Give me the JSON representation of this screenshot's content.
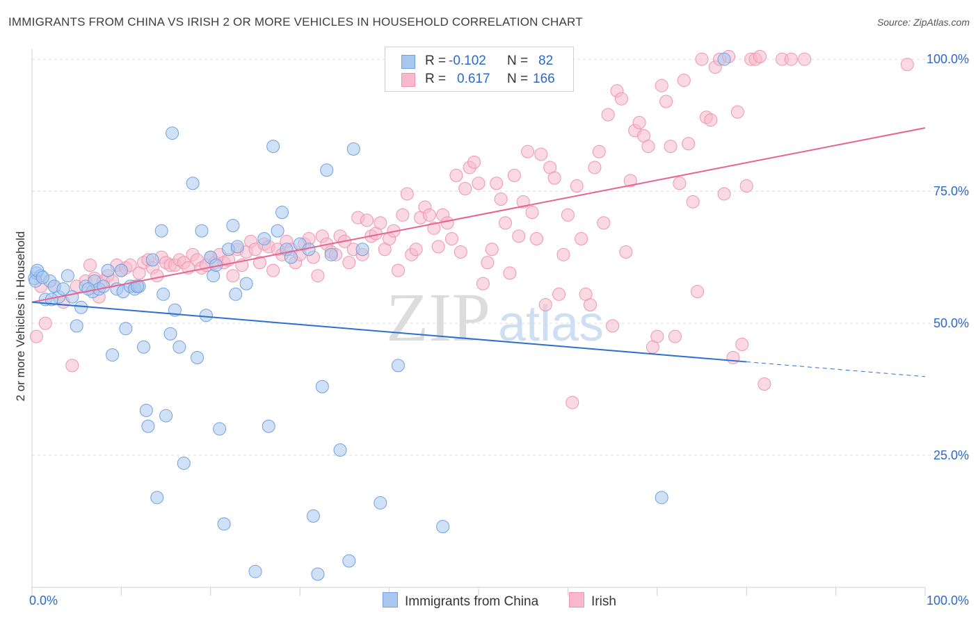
{
  "title": "IMMIGRANTS FROM CHINA VS IRISH 2 OR MORE VEHICLES IN HOUSEHOLD CORRELATION CHART",
  "source": "Source: ZipAtlas.com",
  "watermark": {
    "zip": "ZIP",
    "atlas": "atlas"
  },
  "colors": {
    "china_fill": "#a9c8f0",
    "china_stroke": "#6f9fe0",
    "china_line": "#2d6fd0",
    "irish_fill": "#f7b9cb",
    "irish_stroke": "#ee94b0",
    "irish_line": "#e8628d",
    "value_text": "#2d68c4"
  },
  "legend": [
    {
      "r_label": "R =",
      "r_value": "-0.102",
      "n_label": "N =",
      "n_value": "82"
    },
    {
      "r_label": "R =",
      "r_value": "0.617",
      "n_label": "N =",
      "n_value": "166"
    }
  ],
  "bottom_legend": [
    "Immigrants from China",
    "Irish"
  ],
  "chart_data": {
    "type": "scatter",
    "title": "IMMIGRANTS FROM CHINA VS IRISH 2 OR MORE VEHICLES IN HOUSEHOLD CORRELATION CHART",
    "xlabel": "",
    "ylabel": "2 or more Vehicles in Household",
    "xlim": [
      0,
      100
    ],
    "ylim": [
      0,
      102
    ],
    "x_tick_labels": [
      "0.0%",
      "100.0%"
    ],
    "y_ticks": [
      25,
      50,
      75,
      100
    ],
    "y_tick_labels": [
      "25.0%",
      "50.0%",
      "75.0%",
      "100.0%"
    ],
    "grid": true,
    "series": [
      {
        "name": "Immigrants from China",
        "r": -0.102,
        "n": 82,
        "trend": {
          "x0": 0,
          "y0": 54.0,
          "x1": 80,
          "y1": 42.7,
          "dashed_to_x": 100,
          "dashed_to_y": 39.9
        },
        "points": [
          [
            0.3,
            58.5
          ],
          [
            0.5,
            59.5
          ],
          [
            1,
            59
          ],
          [
            1.5,
            54.5
          ],
          [
            2,
            58
          ],
          [
            2.5,
            57
          ],
          [
            3,
            55
          ],
          [
            4,
            59
          ],
          [
            4.5,
            55
          ],
          [
            5,
            49.5
          ],
          [
            5.5,
            53
          ],
          [
            6,
            57
          ],
          [
            6.8,
            56
          ],
          [
            7,
            58
          ],
          [
            7.5,
            56.5
          ],
          [
            8,
            57
          ],
          [
            8.5,
            60
          ],
          [
            9,
            44
          ],
          [
            9.5,
            56.5
          ],
          [
            10,
            60
          ],
          [
            10.2,
            56
          ],
          [
            10.5,
            49
          ],
          [
            11,
            57
          ],
          [
            11.5,
            56.5
          ],
          [
            12,
            57
          ],
          [
            12.5,
            45.5
          ],
          [
            12.8,
            33.5
          ],
          [
            13,
            30.5
          ],
          [
            13.5,
            62
          ],
          [
            14,
            17
          ],
          [
            14.5,
            67.5
          ],
          [
            14.7,
            55.5
          ],
          [
            15,
            32.5
          ],
          [
            15.5,
            48
          ],
          [
            15.7,
            86
          ],
          [
            16,
            52.5
          ],
          [
            16.5,
            45.5
          ],
          [
            17,
            23.5
          ],
          [
            18,
            76.5
          ],
          [
            18.5,
            43.5
          ],
          [
            19,
            67.5
          ],
          [
            19.5,
            51.5
          ],
          [
            20,
            62.5
          ],
          [
            20.3,
            59
          ],
          [
            20.6,
            61
          ],
          [
            21,
            30
          ],
          [
            21.5,
            12
          ],
          [
            22,
            64
          ],
          [
            22.5,
            68.5
          ],
          [
            22.8,
            55.5
          ],
          [
            23,
            64.5
          ],
          [
            24,
            57.5
          ],
          [
            25,
            3
          ],
          [
            26,
            66
          ],
          [
            26.5,
            30.5
          ],
          [
            27,
            83.5
          ],
          [
            27.5,
            67.5
          ],
          [
            28,
            71
          ],
          [
            28.5,
            64
          ],
          [
            29,
            62.5
          ],
          [
            30,
            65
          ],
          [
            31,
            64
          ],
          [
            31.5,
            13.5
          ],
          [
            32,
            2.5
          ],
          [
            32.5,
            38
          ],
          [
            33,
            79
          ],
          [
            33.5,
            63
          ],
          [
            34.5,
            26
          ],
          [
            35.5,
            5
          ],
          [
            36,
            83
          ],
          [
            37,
            64
          ],
          [
            39,
            16
          ],
          [
            41,
            42
          ],
          [
            46,
            11.5
          ],
          [
            70.5,
            17
          ],
          [
            77.5,
            100
          ],
          [
            0.4,
            58
          ],
          [
            0.6,
            60
          ],
          [
            1.2,
            58.7
          ],
          [
            2.2,
            54.5
          ],
          [
            3.5,
            56.5
          ],
          [
            6.3,
            56.5
          ],
          [
            11.8,
            57
          ]
        ]
      },
      {
        "name": "Irish",
        "r": 0.617,
        "n": 166,
        "trend": {
          "x0": 0,
          "y0": 54.0,
          "x1": 100,
          "y1": 87.0
        },
        "points": [
          [
            0.5,
            47.5
          ],
          [
            1,
            57
          ],
          [
            1.5,
            50
          ],
          [
            2.5,
            57
          ],
          [
            3.5,
            54
          ],
          [
            4.5,
            42
          ],
          [
            5,
            57
          ],
          [
            6,
            58
          ],
          [
            6.5,
            61
          ],
          [
            7,
            58.5
          ],
          [
            7.5,
            55
          ],
          [
            8,
            58
          ],
          [
            8.5,
            59
          ],
          [
            9,
            58
          ],
          [
            9.5,
            61
          ],
          [
            10,
            60
          ],
          [
            10.5,
            60.5
          ],
          [
            11,
            61
          ],
          [
            11.5,
            57
          ],
          [
            12,
            59.5
          ],
          [
            12.5,
            61.5
          ],
          [
            13,
            62
          ],
          [
            13.5,
            60.5
          ],
          [
            14,
            59
          ],
          [
            14.5,
            62.5
          ],
          [
            15,
            61.5
          ],
          [
            15.5,
            61
          ],
          [
            16,
            61
          ],
          [
            16.5,
            62
          ],
          [
            17,
            61.5
          ],
          [
            17.5,
            60.5
          ],
          [
            18,
            63
          ],
          [
            18.5,
            62
          ],
          [
            19,
            60.5
          ],
          [
            19.5,
            61
          ],
          [
            20,
            62.5
          ],
          [
            20.5,
            61.5
          ],
          [
            21,
            63
          ],
          [
            21.5,
            61.5
          ],
          [
            22,
            62
          ],
          [
            22.5,
            59
          ],
          [
            23,
            64
          ],
          [
            23.5,
            61
          ],
          [
            24,
            63.5
          ],
          [
            24.5,
            65.5
          ],
          [
            25,
            64
          ],
          [
            25.5,
            61.5
          ],
          [
            26,
            65
          ],
          [
            26.5,
            64.5
          ],
          [
            27,
            60
          ],
          [
            27.5,
            64
          ],
          [
            28,
            63
          ],
          [
            28.5,
            65.5
          ],
          [
            29,
            64
          ],
          [
            29.5,
            61.5
          ],
          [
            30,
            63
          ],
          [
            30.5,
            65
          ],
          [
            31,
            66
          ],
          [
            31.5,
            62.5
          ],
          [
            32,
            59
          ],
          [
            32.5,
            66.5
          ],
          [
            33,
            65
          ],
          [
            33.5,
            63.5
          ],
          [
            34,
            63
          ],
          [
            34.5,
            66.5
          ],
          [
            35,
            65.5
          ],
          [
            35.5,
            61.5
          ],
          [
            36,
            64
          ],
          [
            36.5,
            70
          ],
          [
            37,
            63
          ],
          [
            37.5,
            69.5
          ],
          [
            38,
            66.5
          ],
          [
            38.5,
            67
          ],
          [
            39,
            69
          ],
          [
            39.5,
            64
          ],
          [
            40,
            66
          ],
          [
            40.5,
            67.5
          ],
          [
            41,
            60
          ],
          [
            41.5,
            70.5
          ],
          [
            42,
            74.5
          ],
          [
            42.5,
            63
          ],
          [
            43,
            64
          ],
          [
            43.5,
            70
          ],
          [
            44,
            72
          ],
          [
            44.5,
            70.5
          ],
          [
            45,
            68
          ],
          [
            45.5,
            64.5
          ],
          [
            46,
            70.5
          ],
          [
            46.5,
            69
          ],
          [
            47,
            66
          ],
          [
            47.5,
            78
          ],
          [
            48,
            63.5
          ],
          [
            48.5,
            75.5
          ],
          [
            49,
            79.5
          ],
          [
            49.5,
            80.5
          ],
          [
            50,
            76.5
          ],
          [
            50.5,
            57.5
          ],
          [
            51,
            61.5
          ],
          [
            51.5,
            64
          ],
          [
            52,
            76.5
          ],
          [
            52.5,
            73.5
          ],
          [
            53,
            69
          ],
          [
            53.5,
            59.5
          ],
          [
            54,
            78
          ],
          [
            54.5,
            66.5
          ],
          [
            55,
            73
          ],
          [
            55.5,
            82.5
          ],
          [
            56,
            71
          ],
          [
            56.5,
            66
          ],
          [
            57,
            82
          ],
          [
            57.5,
            53.5
          ],
          [
            58,
            79.5
          ],
          [
            58.5,
            77.5
          ],
          [
            59,
            55.5
          ],
          [
            59.5,
            63
          ],
          [
            60,
            70.5
          ],
          [
            60.5,
            35
          ],
          [
            61,
            76
          ],
          [
            61.5,
            66
          ],
          [
            62,
            55.5
          ],
          [
            62.5,
            53.5
          ],
          [
            63,
            79.5
          ],
          [
            63.5,
            82.5
          ],
          [
            64,
            69
          ],
          [
            64.5,
            89.5
          ],
          [
            65,
            49.5
          ],
          [
            65.5,
            94
          ],
          [
            66,
            92.5
          ],
          [
            66.5,
            63.5
          ],
          [
            67,
            77
          ],
          [
            67.5,
            86.5
          ],
          [
            68,
            88
          ],
          [
            68.5,
            85.5
          ],
          [
            69,
            83.5
          ],
          [
            69.5,
            45.5
          ],
          [
            70,
            47.5
          ],
          [
            70.5,
            95
          ],
          [
            71,
            92
          ],
          [
            71.5,
            83.5
          ],
          [
            72,
            47.5
          ],
          [
            72.5,
            76.5
          ],
          [
            73,
            96
          ],
          [
            73.5,
            84
          ],
          [
            74,
            73
          ],
          [
            74.5,
            56
          ],
          [
            75,
            100
          ],
          [
            75.5,
            89
          ],
          [
            76,
            88.5
          ],
          [
            76.5,
            98.5
          ],
          [
            77,
            100
          ],
          [
            77.5,
            74.5
          ],
          [
            78,
            100.5
          ],
          [
            78.5,
            43.5
          ],
          [
            79,
            90
          ],
          [
            79.5,
            46
          ],
          [
            80,
            76
          ],
          [
            80.5,
            100
          ],
          [
            81,
            100
          ],
          [
            81.5,
            100.5
          ],
          [
            82,
            38.5
          ],
          [
            84,
            100
          ],
          [
            85,
            100
          ],
          [
            86.5,
            100
          ],
          [
            98,
            99
          ]
        ]
      }
    ]
  }
}
